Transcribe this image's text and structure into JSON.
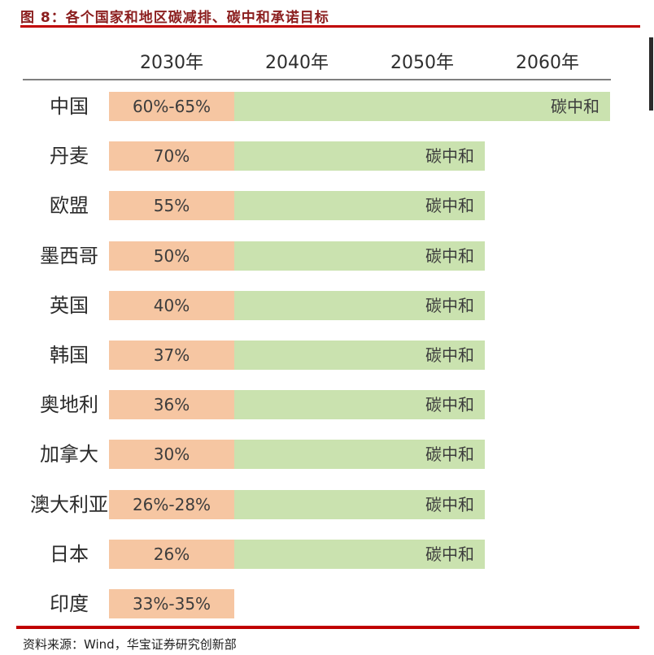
{
  "title": "图 8：各个国家和地区碳减排、碳中和承诺目标",
  "footer": {
    "source": "资料来源：Wind，华宝证券研究创新部"
  },
  "chart_data": {
    "type": "table",
    "title": "各个国家和地区碳减排、碳中和承诺目标",
    "columns": [
      "2030年",
      "2040年",
      "2050年",
      "2060年"
    ],
    "neutral_label": "碳中和",
    "legend": "none",
    "rows": [
      {
        "country": "中国",
        "reduction_2030": "60%-65%",
        "carbon_neutral_year": 2060
      },
      {
        "country": "丹麦",
        "reduction_2030": "70%",
        "carbon_neutral_year": 2050
      },
      {
        "country": "欧盟",
        "reduction_2030": "55%",
        "carbon_neutral_year": 2050
      },
      {
        "country": "墨西哥",
        "reduction_2030": "50%",
        "carbon_neutral_year": 2050
      },
      {
        "country": "英国",
        "reduction_2030": "40%",
        "carbon_neutral_year": 2050
      },
      {
        "country": "韩国",
        "reduction_2030": "37%",
        "carbon_neutral_year": 2050
      },
      {
        "country": "奥地利",
        "reduction_2030": "36%",
        "carbon_neutral_year": 2050
      },
      {
        "country": "加拿大",
        "reduction_2030": "30%",
        "carbon_neutral_year": 2050
      },
      {
        "country": "澳大利亚",
        "reduction_2030": "26%-28%",
        "carbon_neutral_year": 2050
      },
      {
        "country": "日本",
        "reduction_2030": "26%",
        "carbon_neutral_year": 2050
      },
      {
        "country": "印度",
        "reduction_2030": "33%-35%",
        "carbon_neutral_year": null
      }
    ],
    "colors": {
      "reduction_bar": "#F6C6A2",
      "neutral_bar": "#CAE2AF",
      "title_text": "#8B1E1E",
      "red_rule": "#C00000",
      "header_rule": "#7F7F7F",
      "body_text": "#2b2b2b"
    }
  }
}
